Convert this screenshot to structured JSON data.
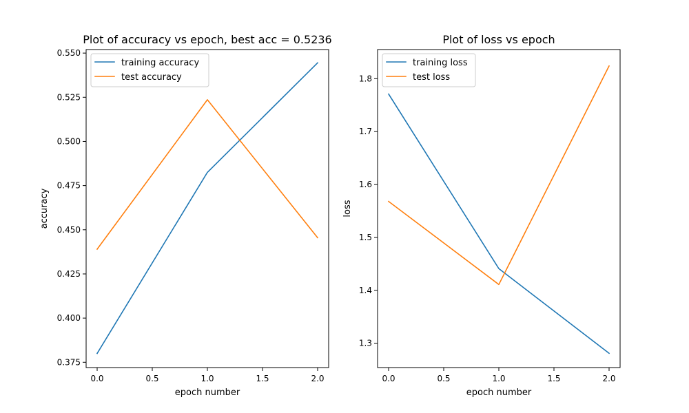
{
  "chart_data": [
    {
      "type": "line",
      "title": "Plot of accuracy vs epoch, best acc = 0.5236",
      "xlabel": "epoch number",
      "ylabel": "accuracy",
      "xlim": [
        -0.1,
        2.1
      ],
      "ylim": [
        0.372,
        0.552
      ],
      "xticks": [
        "0.0",
        "0.5",
        "1.0",
        "1.5",
        "2.0"
      ],
      "yticks": [
        "0.375",
        "0.400",
        "0.425",
        "0.450",
        "0.475",
        "0.500",
        "0.525",
        "0.550"
      ],
      "legend_position": "upper-left",
      "grid": false,
      "x": [
        0,
        1,
        2
      ],
      "series": [
        {
          "name": "training accuracy",
          "color": "#1f77b4",
          "values": [
            0.38,
            0.4825,
            0.5445
          ]
        },
        {
          "name": "test accuracy",
          "color": "#ff7f0e",
          "values": [
            0.439,
            0.5236,
            0.4455
          ]
        }
      ]
    },
    {
      "type": "line",
      "title": "Plot of loss vs epoch",
      "xlabel": "epoch number",
      "ylabel": "loss",
      "xlim": [
        -0.1,
        2.1
      ],
      "ylim": [
        1.254,
        1.855
      ],
      "xticks": [
        "0.0",
        "0.5",
        "1.0",
        "1.5",
        "2.0"
      ],
      "yticks": [
        "1.3",
        "1.4",
        "1.5",
        "1.6",
        "1.7",
        "1.8"
      ],
      "legend_position": "upper-left",
      "grid": false,
      "x": [
        0,
        1,
        2
      ],
      "series": [
        {
          "name": "training loss",
          "color": "#1f77b4",
          "values": [
            1.771,
            1.441,
            1.281
          ]
        },
        {
          "name": "test loss",
          "color": "#ff7f0e",
          "values": [
            1.568,
            1.411,
            1.824
          ]
        }
      ]
    }
  ]
}
